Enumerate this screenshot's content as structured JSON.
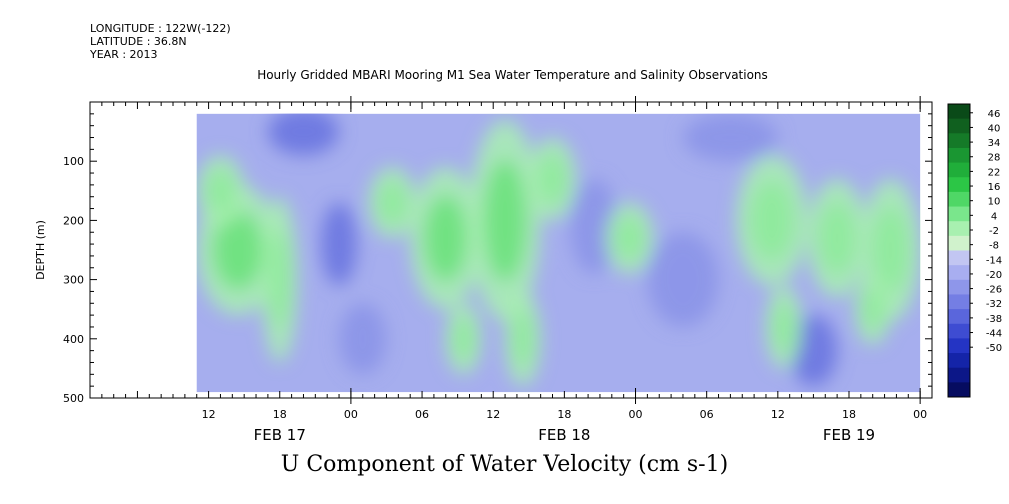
{
  "header": {
    "longitude": "LONGITUDE : 122W(-122)",
    "latitude": "LATITUDE : 36.8N",
    "year": "YEAR : 2013"
  },
  "chart_data": {
    "type": "heatmap",
    "title": "Hourly Gridded MBARI Mooring M1 Sea Water Temperature and Salinity Observations",
    "subtitle": "U Component of Water Velocity (cm s-1)",
    "xlabel": "",
    "ylabel": "DEPTH (m)",
    "x_hour_ticks": [
      "12",
      "18",
      "00",
      "06",
      "12",
      "18",
      "00",
      "06",
      "12",
      "18",
      "00"
    ],
    "x_hours": [
      12,
      18,
      24,
      30,
      36,
      42,
      48,
      54,
      60,
      66,
      72
    ],
    "xlim_hours": [
      2,
      73
    ],
    "date_labels": [
      {
        "label": "FEB 17",
        "hour": 18
      },
      {
        "label": "FEB 18",
        "hour": 42
      },
      {
        "label": "FEB 19",
        "hour": 66
      }
    ],
    "y_ticks": [
      100,
      200,
      300,
      400,
      500
    ],
    "ylim": [
      0,
      500
    ],
    "y_inverted": true,
    "data_extent": {
      "hour_start": 11,
      "hour_end": 72,
      "depth_top": 20,
      "depth_bottom": 490
    },
    "colorbar": {
      "levels": [
        46,
        40,
        34,
        28,
        22,
        16,
        10,
        4,
        -2,
        -8,
        -14,
        -20,
        -26,
        -32,
        -38,
        -44,
        -50
      ],
      "colors_top_to_bottom": [
        "#0a4a18",
        "#10601f",
        "#157a28",
        "#1a9632",
        "#20ae3a",
        "#2cc646",
        "#4fd766",
        "#7ae68c",
        "#a8f0b0",
        "#d0f2cc",
        "#c2c6f2",
        "#a8aef0",
        "#8e96ea",
        "#747ee4",
        "#5a66dc",
        "#3e4cd2",
        "#2434c4",
        "#1424a8",
        "#0c1788",
        "#060c60"
      ]
    },
    "fill_colors": {
      "positive": "#6fe07f",
      "weak_positive": "#a8f0b0",
      "weak_negative": "#a6aeee",
      "negative": "#8b94e8",
      "strong_negative": "#6a76e0"
    },
    "regions_positive": [
      {
        "hour": 14.5,
        "depth": 250,
        "hw": 3.5,
        "dw": 110,
        "v": 14
      },
      {
        "hour": 13,
        "depth": 150,
        "hw": 2,
        "dw": 60,
        "v": 8
      },
      {
        "hour": 18,
        "depth": 300,
        "hw": 1.5,
        "dw": 140,
        "v": 8
      },
      {
        "hour": 27.5,
        "depth": 170,
        "hw": 2,
        "dw": 60,
        "v": 8
      },
      {
        "hour": 32,
        "depth": 230,
        "hw": 3,
        "dw": 120,
        "v": 14
      },
      {
        "hour": 33.5,
        "depth": 400,
        "hw": 1.5,
        "dw": 60,
        "v": 6
      },
      {
        "hour": 37,
        "depth": 200,
        "hw": 3,
        "dw": 170,
        "v": 16
      },
      {
        "hour": 38.5,
        "depth": 400,
        "hw": 1.5,
        "dw": 80,
        "v": 10
      },
      {
        "hour": 41,
        "depth": 130,
        "hw": 2,
        "dw": 70,
        "v": 6
      },
      {
        "hour": 47.5,
        "depth": 230,
        "hw": 2,
        "dw": 60,
        "v": 6
      },
      {
        "hour": 59.5,
        "depth": 200,
        "hw": 3,
        "dw": 110,
        "v": 12
      },
      {
        "hour": 60.5,
        "depth": 380,
        "hw": 1.5,
        "dw": 70,
        "v": 6
      },
      {
        "hour": 65,
        "depth": 230,
        "hw": 2.5,
        "dw": 100,
        "v": 12
      },
      {
        "hour": 69.5,
        "depth": 250,
        "hw": 2.5,
        "dw": 120,
        "v": 12
      },
      {
        "hour": 68,
        "depth": 350,
        "hw": 1.5,
        "dw": 60,
        "v": 6
      }
    ],
    "regions_negative": [
      {
        "hour": 20,
        "depth": 50,
        "hw": 3,
        "dw": 40,
        "v": -16
      },
      {
        "hour": 23,
        "depth": 240,
        "hw": 1.5,
        "dw": 70,
        "v": -16
      },
      {
        "hour": 25,
        "depth": 400,
        "hw": 2,
        "dw": 60,
        "v": -12
      },
      {
        "hour": 44.5,
        "depth": 210,
        "hw": 2,
        "dw": 80,
        "v": -12
      },
      {
        "hour": 52,
        "depth": 300,
        "hw": 3,
        "dw": 80,
        "v": -12
      },
      {
        "hour": 63,
        "depth": 420,
        "hw": 2,
        "dw": 60,
        "v": -16
      },
      {
        "hour": 56,
        "depth": 60,
        "hw": 4,
        "dw": 40,
        "v": -12
      }
    ]
  }
}
